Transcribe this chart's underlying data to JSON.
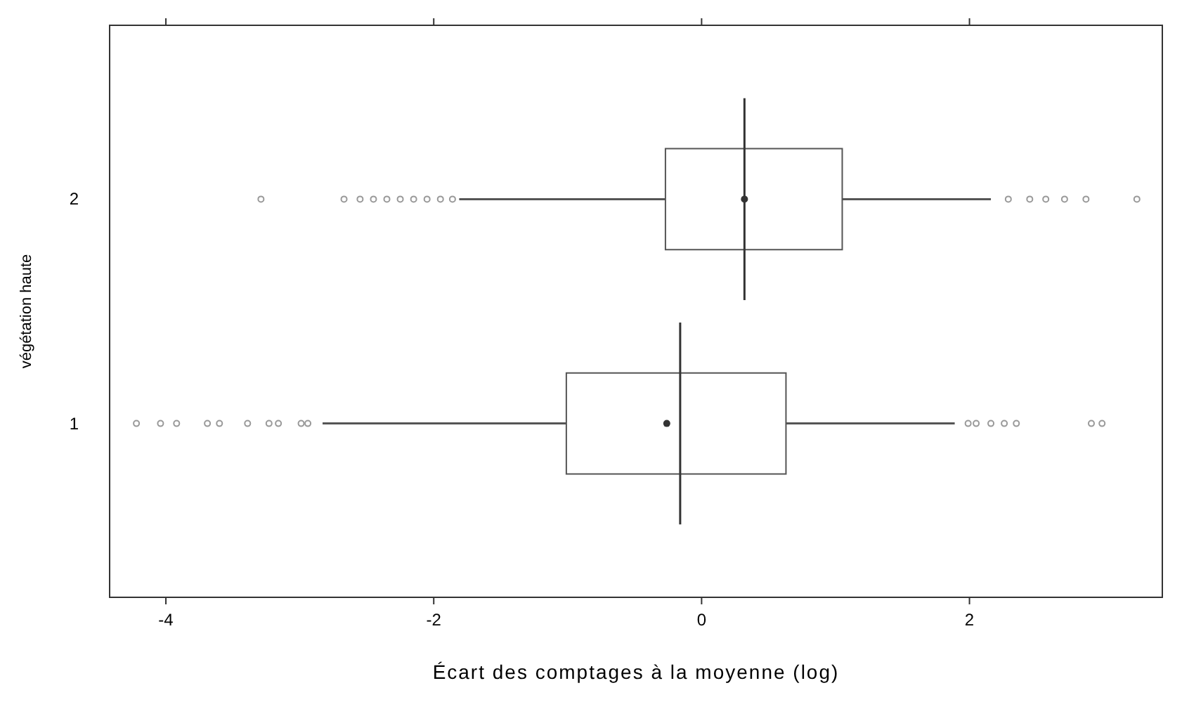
{
  "chart_data": {
    "type": "box",
    "orientation": "horizontal",
    "xlabel": "Écart des comptages à la moyenne (log)",
    "ylabel": "végétation haute",
    "categories": [
      "2",
      "1"
    ],
    "xlim": [
      -4.42,
      3.44
    ],
    "xticks": [
      -4,
      -2,
      0,
      2
    ],
    "grid": false,
    "boxes": [
      {
        "low": -1.81,
        "q1": -0.27,
        "median": 0.32,
        "q3": 1.05,
        "high": 2.16,
        "mean": 0.32,
        "outliers": [
          -3.29,
          -2.67,
          -2.55,
          -2.45,
          -2.35,
          -2.25,
          -2.15,
          -2.05,
          -1.95,
          -1.86,
          2.29,
          2.45,
          2.57,
          2.71,
          2.87,
          3.25
        ]
      },
      {
        "low": -2.83,
        "q1": -1.01,
        "median": -0.16,
        "q3": 0.63,
        "high": 1.89,
        "mean": -0.26,
        "outliers": [
          -4.22,
          -4.04,
          -3.92,
          -3.69,
          -3.6,
          -3.39,
          -3.23,
          -3.16,
          -2.99,
          -2.94,
          1.99,
          2.05,
          2.16,
          2.26,
          2.35,
          2.91,
          2.99
        ]
      }
    ]
  }
}
